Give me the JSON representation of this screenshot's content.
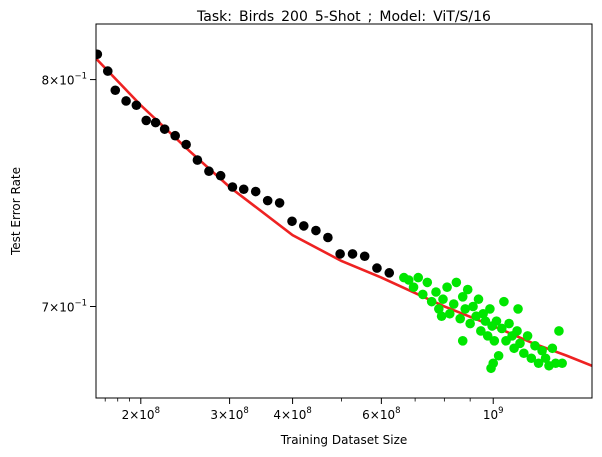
{
  "chart_data": {
    "type": "scatter",
    "title": "Task:_Birds_200_5-Shot_;_Model:_ViT/S/16",
    "xlabel": "Training Dataset Size",
    "ylabel": "Test Error Rate",
    "xscale": "log",
    "yscale": "log",
    "xlim": [
      163000000,
      1570000000
    ],
    "ylim": [
      0.6633,
      0.8266
    ],
    "x_ticks": [
      {
        "value": 200000000,
        "label": "2×10^8",
        "base": "2×10",
        "exp": "8"
      },
      {
        "value": 300000000,
        "label": "3×10^8",
        "base": "3×10",
        "exp": "8"
      },
      {
        "value": 400000000,
        "label": "4×10^8",
        "base": "4×10",
        "exp": "8"
      },
      {
        "value": 600000000,
        "label": "6×10^8",
        "base": "6×10",
        "exp": "8"
      },
      {
        "value": 1000000000,
        "label": "10^9",
        "base": "10",
        "exp": "9"
      }
    ],
    "y_ticks": [
      {
        "value": 0.8,
        "label": "8×10^-1",
        "base": "8×10",
        "exp": "−1"
      },
      {
        "value": 0.7,
        "label": "7×10^-1",
        "base": "7×10",
        "exp": "−1"
      }
    ],
    "grid": false,
    "series": [
      {
        "role": "observed",
        "color": "#000000",
        "points": [
          [
            164000000,
            0.812
          ],
          [
            172000000,
            0.804
          ],
          [
            178000000,
            0.795
          ],
          [
            187000000,
            0.79
          ],
          [
            196000000,
            0.788
          ],
          [
            205000000,
            0.781
          ],
          [
            214000000,
            0.78
          ],
          [
            223000000,
            0.777
          ],
          [
            234000000,
            0.774
          ],
          [
            246000000,
            0.77
          ],
          [
            259000000,
            0.763
          ],
          [
            273000000,
            0.758
          ],
          [
            288000000,
            0.756
          ],
          [
            304000000,
            0.751
          ],
          [
            320000000,
            0.75
          ],
          [
            338000000,
            0.749
          ],
          [
            357000000,
            0.745
          ],
          [
            377000000,
            0.744
          ],
          [
            399000000,
            0.736
          ],
          [
            421000000,
            0.734
          ],
          [
            445000000,
            0.732
          ],
          [
            470000000,
            0.729
          ],
          [
            497000000,
            0.722
          ],
          [
            526000000,
            0.722
          ],
          [
            556000000,
            0.721
          ],
          [
            588000000,
            0.716
          ],
          [
            622000000,
            0.714
          ]
        ]
      },
      {
        "role": "held-out",
        "color": "#00e600",
        "points": [
          [
            665000000,
            0.712
          ],
          [
            680000000,
            0.711
          ],
          [
            695000000,
            0.708
          ],
          [
            710000000,
            0.712
          ],
          [
            725000000,
            0.705
          ],
          [
            740000000,
            0.71
          ],
          [
            755000000,
            0.702
          ],
          [
            770000000,
            0.706
          ],
          [
            780000000,
            0.699
          ],
          [
            795000000,
            0.703
          ],
          [
            810000000,
            0.708
          ],
          [
            820000000,
            0.697
          ],
          [
            835000000,
            0.701
          ],
          [
            845000000,
            0.71
          ],
          [
            860000000,
            0.695
          ],
          [
            870000000,
            0.704
          ],
          [
            880000000,
            0.699
          ],
          [
            890000000,
            0.707
          ],
          [
            900000000,
            0.693
          ],
          [
            912000000,
            0.7
          ],
          [
            925000000,
            0.696
          ],
          [
            935000000,
            0.703
          ],
          [
            945000000,
            0.69
          ],
          [
            955000000,
            0.697
          ],
          [
            965000000,
            0.694
          ],
          [
            975000000,
            0.688
          ],
          [
            985000000,
            0.699
          ],
          [
            995000000,
            0.692
          ],
          [
            1005000000,
            0.686
          ],
          [
            1015000000,
            0.694
          ],
          [
            1025000000,
            0.68
          ],
          [
            1040000000,
            0.691
          ],
          [
            1050000000,
            0.702
          ],
          [
            1060000000,
            0.686
          ],
          [
            1075000000,
            0.693
          ],
          [
            1090000000,
            0.688
          ],
          [
            1100000000,
            0.683
          ],
          [
            1115000000,
            0.69
          ],
          [
            1130000000,
            0.685
          ],
          [
            1150000000,
            0.681
          ],
          [
            1170000000,
            0.688
          ],
          [
            1190000000,
            0.679
          ],
          [
            1210000000,
            0.684
          ],
          [
            1230000000,
            0.677
          ],
          [
            1250000000,
            0.682
          ],
          [
            1270000000,
            0.679
          ],
          [
            1290000000,
            0.676
          ],
          [
            1310000000,
            0.683
          ],
          [
            1330000000,
            0.677
          ],
          [
            1350000000,
            0.69
          ],
          [
            1370000000,
            0.677
          ],
          [
            990000000,
            0.675
          ],
          [
            1000000000,
            0.677
          ],
          [
            1120000000,
            0.699
          ],
          [
            870000000,
            0.686
          ],
          [
            790000000,
            0.696
          ]
        ]
      },
      {
        "role": "fit",
        "color": "#ee2222",
        "points": [
          [
            163000000,
            0.81
          ],
          [
            200000000,
            0.788
          ],
          [
            250000000,
            0.767
          ],
          [
            300000000,
            0.751
          ],
          [
            400000000,
            0.73
          ],
          [
            500000000,
            0.719
          ],
          [
            600000000,
            0.712
          ],
          [
            800000000,
            0.7
          ],
          [
            1000000000,
            0.692
          ],
          [
            1200000000,
            0.685
          ],
          [
            1400000000,
            0.68
          ],
          [
            1570000000,
            0.676
          ]
        ]
      }
    ]
  }
}
